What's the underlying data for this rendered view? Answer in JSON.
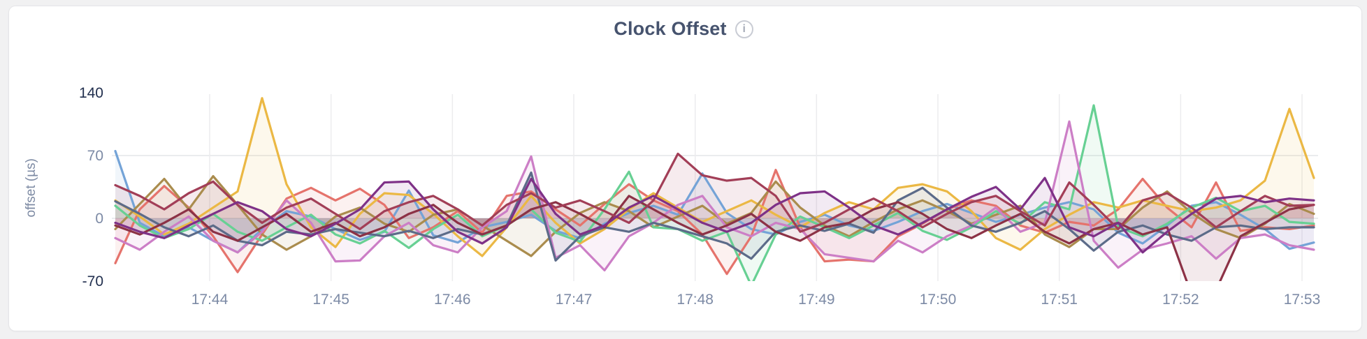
{
  "title": {
    "text": "Clock Offset",
    "info_icon_glyph": "i"
  },
  "y_axis": {
    "label": "offset (µs)",
    "tick_labels": [
      "140",
      "70",
      "0",
      "-70"
    ]
  },
  "x_axis": {
    "tick_labels": [
      "17:44",
      "17:45",
      "17:46",
      "17:47",
      "17:48",
      "17:49",
      "17:50",
      "17:51",
      "17:52",
      "17:53"
    ]
  },
  "chart_data": {
    "type": "line",
    "title": "Clock Offset",
    "xlabel": "",
    "ylabel": "offset (µs)",
    "ylim": [
      -70,
      140
    ],
    "y_ticks": [
      140,
      70,
      0,
      -70
    ],
    "x_tick_labels": [
      "17:44",
      "17:45",
      "17:46",
      "17:47",
      "17:48",
      "17:49",
      "17:50",
      "17:51",
      "17:52",
      "17:53"
    ],
    "x_start_time": "17:43:13",
    "x_step_seconds": 12,
    "grid": true,
    "legend": "none",
    "area_fill_opacity": 0.1,
    "values_unit": "µs",
    "series": [
      {
        "id": 1,
        "color": "#74A3D7",
        "values": [
          75,
          -5,
          -20,
          -10,
          -25,
          -38,
          -12,
          8,
          2,
          -12,
          -24,
          -15,
          31,
          -19,
          -27,
          -10,
          -4,
          4,
          -14,
          -22,
          -6,
          6,
          14,
          4,
          50,
          6,
          -12,
          -18,
          -4,
          4,
          -8,
          -14,
          -4,
          8,
          16,
          6,
          -4,
          4,
          12,
          18,
          10,
          -16,
          -28,
          -8,
          14,
          18,
          4,
          -12,
          -34,
          -27
        ]
      },
      {
        "id": 2,
        "color": "#E5736C",
        "values": [
          -50,
          10,
          36,
          12,
          -20,
          -60,
          -18,
          22,
          34,
          20,
          33,
          15,
          -22,
          -10,
          8,
          -16,
          25,
          30,
          10,
          -8,
          16,
          38,
          20,
          8,
          -18,
          -62,
          -20,
          54,
          -10,
          -48,
          -46,
          -48,
          -20,
          -6,
          10,
          20,
          14,
          -8,
          -16,
          -4,
          -8,
          10,
          44,
          12,
          -10,
          40,
          -14,
          -10,
          -12,
          -8
        ]
      },
      {
        "id": 3,
        "color": "#EBB844",
        "values": [
          20,
          2,
          -18,
          -6,
          12,
          30,
          134,
          38,
          -10,
          -32,
          5,
          28,
          26,
          5,
          -20,
          -42,
          -10,
          25,
          -5,
          -28,
          -12,
          10,
          28,
          12,
          -4,
          8,
          20,
          4,
          -10,
          6,
          18,
          10,
          34,
          38,
          30,
          8,
          -22,
          -35,
          -12,
          4,
          18,
          12,
          20,
          14,
          8,
          12,
          20,
          42,
          122,
          45
        ]
      },
      {
        "id": 4,
        "color": "#AA8C4D",
        "values": [
          -12,
          16,
          44,
          10,
          47,
          15,
          -18,
          -35,
          -20,
          2,
          12,
          -6,
          -15,
          4,
          10,
          -8,
          -25,
          -42,
          -15,
          6,
          18,
          8,
          -10,
          2,
          14,
          -6,
          6,
          41,
          12,
          -8,
          -20,
          -4,
          10,
          20,
          8,
          -6,
          4,
          14,
          -18,
          -32,
          -12,
          -12,
          12,
          30,
          6,
          -12,
          -22,
          -6,
          16,
          5
        ]
      },
      {
        "id": 5,
        "color": "#67D093",
        "values": [
          14,
          -8,
          -22,
          -12,
          5,
          -15,
          -25,
          -10,
          4,
          -18,
          -28,
          -14,
          -33,
          -12,
          4,
          -20,
          -8,
          10,
          -16,
          -26,
          10,
          52,
          -10,
          -12,
          -25,
          -15,
          -75,
          -18,
          2,
          -10,
          -22,
          -8,
          6,
          -14,
          -24,
          -10,
          8,
          -6,
          18,
          10,
          126,
          -10,
          -20,
          -6,
          12,
          23,
          8,
          14,
          -4,
          -6
        ]
      },
      {
        "id": 6,
        "color": "#CC7EC6",
        "values": [
          -22,
          -35,
          -15,
          2,
          -25,
          -38,
          -15,
          20,
          -5,
          -48,
          -47,
          -20,
          -5,
          -30,
          -38,
          -10,
          8,
          69,
          -44,
          -30,
          -58,
          -20,
          -5,
          15,
          25,
          -10,
          -20,
          -5,
          -12,
          -40,
          -44,
          -48,
          -25,
          -38,
          -20,
          -8,
          12,
          -15,
          -5,
          108,
          -25,
          -55,
          -35,
          -28,
          -20,
          -45,
          -22,
          -18,
          -30,
          -35
        ]
      },
      {
        "id": 7,
        "color": "#5C6B89",
        "values": [
          19,
          5,
          -10,
          -20,
          -8,
          -25,
          -30,
          -15,
          -18,
          -12,
          -16,
          -20,
          -14,
          -22,
          -12,
          -18,
          -8,
          51,
          -47,
          -20,
          -10,
          -15,
          -5,
          -12,
          -20,
          -28,
          -45,
          -15,
          -8,
          -14,
          -6,
          -16,
          20,
          34,
          12,
          -8,
          -15,
          -5,
          8,
          -12,
          -36,
          -15,
          -8,
          -18,
          -25,
          -10,
          -8,
          -12,
          -10,
          -10
        ]
      },
      {
        "id": 8,
        "color": "#8C3246",
        "values": [
          -8,
          -18,
          -5,
          10,
          -15,
          -25,
          -10,
          5,
          -15,
          -5,
          -20,
          -10,
          5,
          15,
          -5,
          -18,
          -8,
          10,
          18,
          5,
          -10,
          25,
          10,
          -5,
          -18,
          -8,
          5,
          -15,
          -25,
          -10,
          -5,
          10,
          18,
          5,
          -12,
          -22,
          -8,
          5,
          -15,
          -28,
          -12,
          -5,
          -18,
          -10,
          -85,
          -80,
          -20,
          -5,
          10,
          15
        ]
      },
      {
        "id": 9,
        "color": "#A23E57",
        "values": [
          37,
          25,
          10,
          28,
          41,
          15,
          -5,
          12,
          22,
          5,
          -12,
          8,
          18,
          25,
          10,
          -8,
          15,
          28,
          12,
          20,
          8,
          -5,
          20,
          72,
          48,
          42,
          45,
          25,
          -15,
          -5,
          10,
          22,
          8,
          -10,
          5,
          18,
          25,
          8,
          -8,
          40,
          15,
          -12,
          20,
          28,
          12,
          -10,
          8,
          25,
          14,
          15
        ]
      },
      {
        "id": 10,
        "color": "#7E3187",
        "values": [
          -5,
          -15,
          -22,
          -8,
          5,
          18,
          8,
          -12,
          -20,
          -6,
          10,
          40,
          41,
          10,
          -15,
          -28,
          -10,
          44,
          5,
          -18,
          -8,
          12,
          25,
          10,
          -5,
          -15,
          -5,
          15,
          28,
          30,
          12,
          -8,
          -18,
          -5,
          10,
          24,
          35,
          10,
          45,
          -10,
          -20,
          -5,
          -38,
          -15,
          5,
          22,
          25,
          18,
          22,
          20
        ]
      }
    ]
  }
}
